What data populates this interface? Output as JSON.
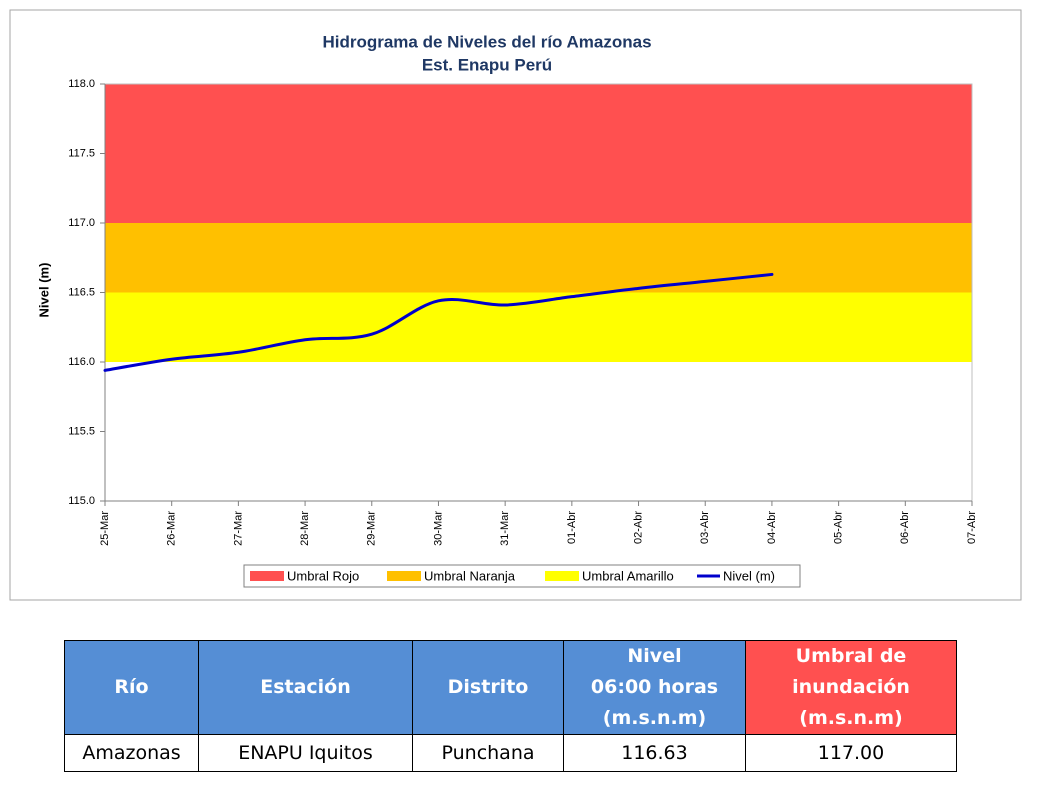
{
  "chart_data": {
    "type": "line",
    "title": [
      "Hidrograma de Niveles del río Amazonas",
      "Est. Enapu Perú"
    ],
    "y_label": "Nivel (m)",
    "categories": [
      "25-Mar",
      "26-Mar",
      "27-Mar",
      "28-Mar",
      "29-Mar",
      "30-Mar",
      "31-Mar",
      "01-Abr",
      "02-Abr",
      "03-Abr",
      "04-Abr",
      "05-Abr",
      "06-Abr",
      "07-Abr"
    ],
    "bands": [
      {
        "name": "Umbral Rojo",
        "color": "#ff5050",
        "from": 117,
        "to": 118
      },
      {
        "name": "Umbral Naranja",
        "color": "#ffc000",
        "from": 116.5,
        "to": 117
      },
      {
        "name": "Umbral Amarillo",
        "color": "#ffff00",
        "from": 116,
        "to": 116.5
      }
    ],
    "series": [
      {
        "name": "Nivel (m)",
        "color": "#0000cc",
        "values": [
          115.94,
          116.02,
          116.07,
          116.16,
          116.2,
          116.44,
          116.41,
          116.47,
          116.53,
          116.58,
          116.63,
          null,
          null,
          null
        ]
      }
    ],
    "ylim": [
      115,
      118
    ],
    "yticks": [
      {
        "value": 115,
        "label": "115.0"
      },
      {
        "value": 115.5,
        "label": "115.5"
      },
      {
        "value": 116,
        "label": "116.0"
      },
      {
        "value": 116.5,
        "label": "116.5"
      },
      {
        "value": 117,
        "label": "117.0"
      },
      {
        "value": 117.5,
        "label": "117.5"
      },
      {
        "value": 118,
        "label": "118.0"
      }
    ],
    "legend": "bottom"
  },
  "table": {
    "header": [
      [
        "Río"
      ],
      [
        "Estación"
      ],
      [
        "Distrito"
      ],
      [
        "Nivel",
        "06:00 horas",
        "(m.s.n.m)"
      ],
      [
        "Umbral de",
        "inundación",
        "(m.s.n.m)"
      ]
    ],
    "rows": [
      [
        "Amazonas",
        "ENAPU Iquitos",
        "Punchana",
        "116.63",
        "117.00"
      ]
    ]
  }
}
